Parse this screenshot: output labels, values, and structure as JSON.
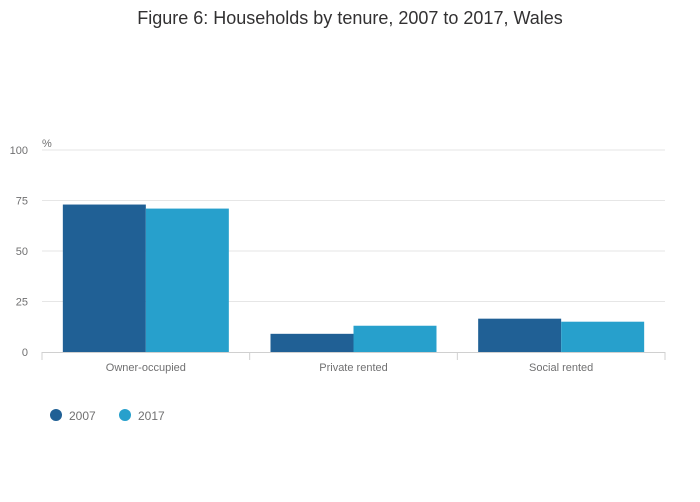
{
  "chart_data": {
    "type": "bar",
    "title": "Figure 6: Households by tenure, 2007 to 2017, Wales",
    "ylabel": "%",
    "xlabel": "",
    "ylim": [
      0,
      100
    ],
    "yticks": [
      0,
      25,
      50,
      75,
      100
    ],
    "categories": [
      "Owner-occupied",
      "Private rented",
      "Social rented"
    ],
    "series": [
      {
        "name": "2007",
        "color": "#206095",
        "values": [
          73,
          9,
          16.5
        ]
      },
      {
        "name": "2017",
        "color": "#27a0cc",
        "values": [
          71,
          13,
          15
        ]
      }
    ],
    "legend_position": "bottom-left",
    "grid": true
  }
}
